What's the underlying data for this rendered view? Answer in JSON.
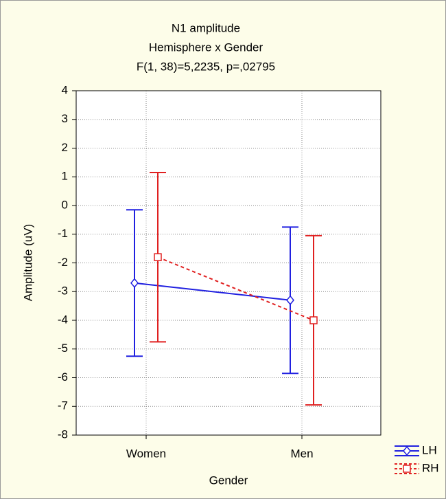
{
  "chart_data": {
    "type": "errorbar-line",
    "title": "N1 amplitude",
    "subtitle": [
      "Hemisphere x Gender",
      "F(1, 38)=5,2235, p=,02795"
    ],
    "x_label": "Gender",
    "y_label": "Amplitude (uV)",
    "categories": [
      "Women",
      "Men"
    ],
    "series": [
      {
        "name": "LH",
        "color": "#2020e0",
        "marker": "diamond",
        "line_style": "solid",
        "values": [
          -2.7,
          -3.3
        ],
        "errors": [
          2.55,
          2.55
        ]
      },
      {
        "name": "RH",
        "color": "#e02020",
        "marker": "square",
        "line_style": "dashed",
        "values": [
          -1.8,
          -4.0
        ],
        "errors": [
          2.95,
          2.95
        ]
      }
    ],
    "ylim": [
      -8,
      4
    ],
    "yticks": [
      -8,
      -7,
      -6,
      -5,
      -4,
      -3,
      -2,
      -1,
      0,
      1,
      2,
      3,
      4
    ],
    "grid": true,
    "legend": "lower right"
  }
}
